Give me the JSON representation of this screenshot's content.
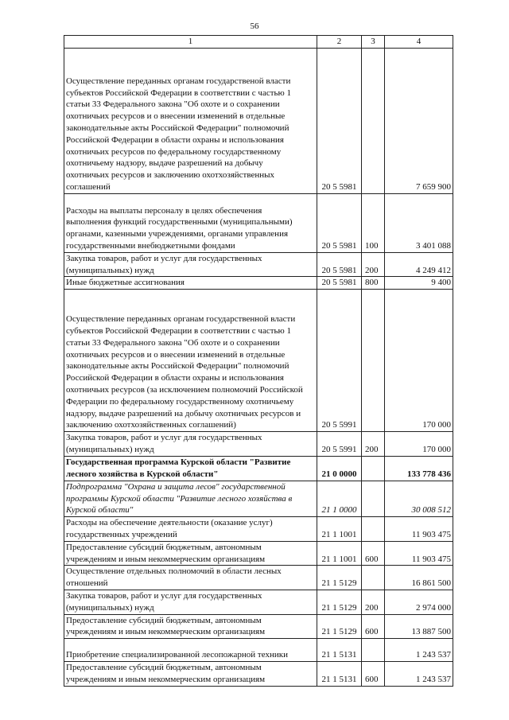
{
  "page_number": "56",
  "table": {
    "headers": [
      "1",
      "2",
      "3",
      "4"
    ],
    "rows": [
      {
        "name": "Осуществление переданных органам государственой власти\nсубъектов Российской Федерации в соответствии с частью 1\nстатьи 33 Федерального закона \"Об охоте и о сохранении\nохотничьих ресурсов и о внесении изменений в отдельные\nзаконодательные акты Российской Федерации\" полномочий\nРоссийской Федерации в области охраны и использования\nохотничьих ресурсов по федеральному государственному\nохотничьему надзору, выдаче разрешений на добычу\nохотничьих  ресурсов и заключению охотхозяйственных\nсоглашений",
        "code": "20 5 5981",
        "type": "",
        "amount": "7 659 900",
        "style": ""
      },
      {
        "name": "Расходы на выплаты персоналу в целях обеспечения\nвыполнения функций государственными (муниципальными)\nорганами, казенными учреждениями, органами управления\nгосударственными внебюджетными фондами",
        "code": "20 5 5981",
        "type": "100",
        "amount": "3 401 088",
        "style": ""
      },
      {
        "name": "Закупка товаров, работ и услуг для государственных\n(муниципальных) нужд",
        "code": "20 5 5981",
        "type": "200",
        "amount": "4 249 412",
        "style": ""
      },
      {
        "name": "Иные бюджетные ассигнования",
        "code": "20 5 5981",
        "type": "800",
        "amount": "9 400",
        "style": ""
      },
      {
        "name": "Осуществление переданных органам государственной власти\nсубъектов Российской Федерации в соответствии с частью 1\nстатьи 33 Федерального закона \"Об охоте и о сохранении\nохотничьих ресурсов и о внесении изменений в отдельные\nзаконодательные акты Российской Федерации\" полномочий\nРоссийской Федерации в области охраны и использования\nохотничьих ресурсов (за исключением полномочий Российской\nФедерации по федеральному государственному охотничьему\nнадзору, выдаче разрешений на добычу охотничьих ресурсов и\nзаключению охотхозяйственных соглашений)",
        "code": "20 5 5991",
        "type": "",
        "amount": "170 000",
        "style": ""
      },
      {
        "name": "Закупка товаров, работ и услуг для государственных\n(муниципальных) нужд",
        "code": "20 5 5991",
        "type": "200",
        "amount": "170 000",
        "style": ""
      },
      {
        "name": "Государственная программа Курской области \"Развитие\nлесного хозяйства в Курской области\"",
        "code": "21 0 0000",
        "type": "",
        "amount": "133 778 436",
        "style": "bold"
      },
      {
        "name": "Подпрограмма \"Охрана и защита лесов\" государственной\nпрограммы Курской области \"Развитие лесного хозяйства в\nКурской области\"",
        "code": "21 1 0000",
        "type": "",
        "amount": "30 008 512",
        "style": "ital"
      },
      {
        "name": "Расходы на обеспечение деятельности (оказание услуг)\nгосударственных учреждений",
        "code": "21 1 1001",
        "type": "",
        "amount": "11 903 475",
        "style": ""
      },
      {
        "name": "Предоставление субсидий бюджетным, автономным\nучреждениям и иным некоммерческим организациям",
        "code": "21 1 1001",
        "type": "600",
        "amount": "11 903 475",
        "style": ""
      },
      {
        "name": "Осуществление отдельных полномочий в области лесных\nотношений",
        "code": "21 1 5129",
        "type": "",
        "amount": "16 861 500",
        "style": ""
      },
      {
        "name": "Закупка товаров, работ и услуг для государственных\n(муниципальных) нужд",
        "code": "21 1 5129",
        "type": "200",
        "amount": "2 974 000",
        "style": ""
      },
      {
        "name": "Предоставление субсидий бюджетным, автономным\nучреждениям и иным некоммерческим организациям",
        "code": "21 1 5129",
        "type": "600",
        "amount": "13 887 500",
        "style": ""
      },
      {
        "name": "Приобретение специализированной лесопожарной техники",
        "code": "21 1 5131",
        "type": "",
        "amount": "1 243 537",
        "style": ""
      },
      {
        "name": "Предоставление субсидий бюджетным, автономным\nучреждениям и иным некоммерческим организациям",
        "code": "21 1 5131",
        "type": "600",
        "amount": "1 243 537",
        "style": ""
      }
    ]
  }
}
